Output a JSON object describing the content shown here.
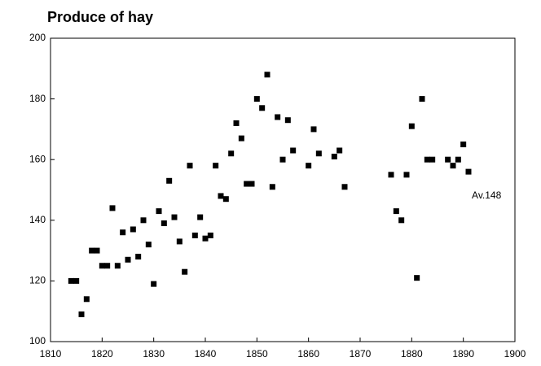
{
  "chart_data": {
    "type": "scatter",
    "title": "Produce of hay",
    "annotation": "Av.148",
    "color": "#000000",
    "x": [
      1814,
      1815,
      1816,
      1817,
      1818,
      1819,
      1820,
      1821,
      1822,
      1823,
      1824,
      1825,
      1826,
      1827,
      1828,
      1829,
      1830,
      1831,
      1832,
      1833,
      1834,
      1835,
      1836,
      1837,
      1838,
      1839,
      1840,
      1841,
      1842,
      1843,
      1844,
      1845,
      1846,
      1847,
      1848,
      1849,
      1850,
      1851,
      1852,
      1853,
      1854,
      1855,
      1856,
      1857,
      1860,
      1861,
      1862,
      1865,
      1866,
      1867,
      1876,
      1877,
      1878,
      1879,
      1880,
      1881,
      1882,
      1883,
      1884,
      1887,
      1888,
      1889,
      1890,
      1891
    ],
    "values": [
      120,
      120,
      109,
      114,
      130,
      130,
      125,
      125,
      144,
      125,
      136,
      127,
      137,
      128,
      140,
      132,
      119,
      143,
      139,
      153,
      141,
      133,
      123,
      158,
      135,
      141,
      134,
      135,
      158,
      148,
      147,
      162,
      172,
      167,
      152,
      152,
      180,
      177,
      188,
      151,
      174,
      160,
      173,
      163,
      158,
      170,
      162,
      161,
      163,
      151,
      155,
      143,
      140,
      155,
      171,
      121,
      180,
      160,
      160,
      160,
      158,
      160,
      165,
      156
    ],
    "xlim": [
      1810,
      1900
    ],
    "xticks": [
      1810,
      1820,
      1830,
      1840,
      1850,
      1860,
      1870,
      1880,
      1890,
      1900
    ],
    "ylim": [
      100,
      200
    ],
    "yticks": [
      100,
      120,
      140,
      160,
      180,
      200
    ]
  }
}
